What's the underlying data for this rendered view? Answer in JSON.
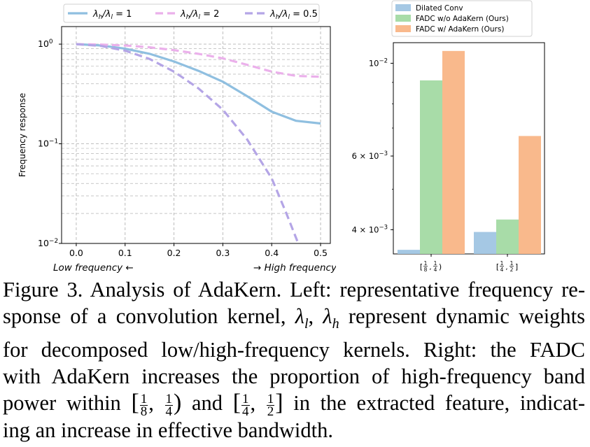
{
  "chart_data": [
    {
      "type": "line",
      "ylabel": "Frequency response",
      "yscale": "log",
      "ylim": [
        0.01,
        1.5
      ],
      "y_ticks": [
        {
          "value": 1,
          "label": "10⁰"
        },
        {
          "value": 0.1,
          "label": "10⁻¹"
        },
        {
          "value": 0.01,
          "label": "10⁻²"
        }
      ],
      "x_ticks": [
        "0.0",
        "0.1",
        "0.2",
        "0.3",
        "0.4",
        "0.5"
      ],
      "xlim": [
        -0.03,
        0.52
      ],
      "x_annotation_left": "Low frequency ←",
      "x_annotation_right": "→ High frequency",
      "legend": "top",
      "series": [
        {
          "name": "λh/λl = 1",
          "label_parts": [
            "λ",
            "h",
            "/λ",
            "l",
            " = 1"
          ],
          "color": "#8fbfe0",
          "dash": "solid",
          "x": [
            0,
            0.05,
            0.1,
            0.15,
            0.2,
            0.25,
            0.3,
            0.35,
            0.4,
            0.45,
            0.5
          ],
          "y": [
            1.0,
            0.97,
            0.9,
            0.8,
            0.67,
            0.54,
            0.42,
            0.3,
            0.21,
            0.17,
            0.16
          ]
        },
        {
          "name": "λh/λl = 2",
          "label_parts": [
            "λ",
            "h",
            "/λ",
            "l",
            " = 2"
          ],
          "color": "#ebb0eb",
          "dash": "dashed",
          "x": [
            0,
            0.05,
            0.1,
            0.15,
            0.2,
            0.25,
            0.3,
            0.35,
            0.4,
            0.45,
            0.5
          ],
          "y": [
            1.0,
            0.99,
            0.97,
            0.93,
            0.87,
            0.8,
            0.72,
            0.62,
            0.53,
            0.48,
            0.47
          ]
        },
        {
          "name": "λh/λl = 0.5",
          "label_parts": [
            "λ",
            "h",
            "/λ",
            "l",
            " = 0.5"
          ],
          "color": "#b4a5e6",
          "dash": "dashed",
          "x": [
            0,
            0.05,
            0.1,
            0.15,
            0.2,
            0.25,
            0.3,
            0.35,
            0.4,
            0.43,
            0.455
          ],
          "y": [
            1.0,
            0.96,
            0.86,
            0.71,
            0.53,
            0.36,
            0.22,
            0.11,
            0.045,
            0.02,
            0.0095
          ]
        }
      ]
    },
    {
      "type": "bar",
      "yscale": "log",
      "ylim": [
        0.0035,
        0.0112
      ],
      "y_ticks": [
        {
          "value": 0.01,
          "label": "10⁻²"
        },
        {
          "value": 0.006,
          "label": "6 × 10⁻³"
        },
        {
          "value": 0.004,
          "label": "4 × 10⁻³"
        }
      ],
      "categories": [
        {
          "label": "[1/8, 1/4)",
          "parts": [
            "[",
            "1",
            "8",
            ",",
            "1",
            "4",
            ")"
          ]
        },
        {
          "label": "[1/4, 1/2]",
          "parts": [
            "[",
            "1",
            "4",
            ",",
            "1",
            "2",
            "]"
          ]
        }
      ],
      "legend": "top-left",
      "series": [
        {
          "name": "Dilated Conv",
          "color": "#a5c8e4",
          "values": [
            0.00358,
            0.00395
          ]
        },
        {
          "name": "FADC w/o AdaKern (Ours)",
          "color": "#a8dca8",
          "values": [
            0.0091,
            0.00423
          ]
        },
        {
          "name": "FADC w/ AdaKern (Ours)",
          "color": "#f9b98c",
          "values": [
            0.0107,
            0.0067
          ]
        }
      ]
    }
  ],
  "caption": {
    "line1": "Figure 3. Analysis of AdaKern. Left: representative frequency re-",
    "line2_a": "sponse of a convolution kernel, ",
    "line2_b": " represent dynamic weights",
    "line3": "for decomposed low/high-frequency kernels.  Right: the FADC",
    "line4": "with AdaKern increases the proportion of high-frequency band",
    "line5_a": "power within ",
    "line5_b": " and ",
    "line5_c": " in the extracted feature, indicat-",
    "line6": "ing an increase in effective bandwidth."
  }
}
